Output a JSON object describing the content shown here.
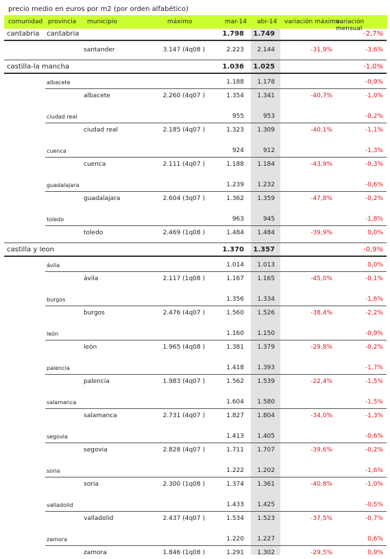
{
  "title": "precio medio en euros por m2 (por orden alfabético)",
  "colors": {
    "header_bg": "#ccff33",
    "negative": "#e8101a",
    "highlight_col": "#e2e2e2"
  },
  "header": {
    "comunidad": "comunidad",
    "provincia": "provincia",
    "municipio": "municipio",
    "maximo": "máximo",
    "mar": "mar-14",
    "abr": "abr-14",
    "var_max": "variación máximo",
    "var_men": "variación mensual"
  },
  "rows": [
    {
      "type": "com",
      "comunidad": "cantabria",
      "provincia": "cantabria",
      "municipio": "",
      "maximo": "",
      "mar": "1.798",
      "abr": "1.749",
      "var_max": "",
      "var_men": "-2,7%"
    },
    {
      "type": "mun",
      "comunidad": "",
      "provincia": "",
      "municipio": "santander",
      "maximo": "3.147 (4q08 )",
      "mar": "2.223",
      "abr": "2.144",
      "var_max": "-31,9%",
      "var_men": "-3,6%"
    },
    {
      "type": "com",
      "comunidad": "castilla-la mancha",
      "provincia": "",
      "municipio": "",
      "maximo": "",
      "mar": "1.036",
      "abr": "1.025",
      "var_max": "",
      "var_men": "-1,0%"
    },
    {
      "type": "prov",
      "comunidad": "",
      "provincia": "albacete",
      "municipio": "",
      "maximo": "",
      "mar": "1.188",
      "abr": "1.178",
      "var_max": "",
      "var_men": "-0,9%"
    },
    {
      "type": "mun",
      "comunidad": "",
      "provincia": "",
      "municipio": "albacete",
      "maximo": "2.260 (4q07 )",
      "mar": "1.354",
      "abr": "1.341",
      "var_max": "-40,7%",
      "var_men": "-1,0%"
    },
    {
      "type": "prov",
      "comunidad": "",
      "provincia": "ciudad real",
      "municipio": "",
      "maximo": "",
      "mar": "955",
      "abr": "953",
      "var_max": "",
      "var_men": "-0,2%"
    },
    {
      "type": "mun",
      "comunidad": "",
      "provincia": "",
      "municipio": "ciudad real",
      "maximo": "2.185 (4q07 )",
      "mar": "1.323",
      "abr": "1.309",
      "var_max": "-40,1%",
      "var_men": "-1,1%"
    },
    {
      "type": "prov",
      "comunidad": "",
      "provincia": "cuenca",
      "municipio": "",
      "maximo": "",
      "mar": "924",
      "abr": "912",
      "var_max": "",
      "var_men": "-1,3%"
    },
    {
      "type": "mun",
      "comunidad": "",
      "provincia": "",
      "municipio": "cuenca",
      "maximo": "2.111 (4q07 )",
      "mar": "1.188",
      "abr": "1.184",
      "var_max": "-43,9%",
      "var_men": "-0,3%"
    },
    {
      "type": "prov",
      "comunidad": "",
      "provincia": "guadalajara",
      "municipio": "",
      "maximo": "",
      "mar": "1.239",
      "abr": "1.232",
      "var_max": "",
      "var_men": "-0,6%"
    },
    {
      "type": "mun",
      "comunidad": "",
      "provincia": "",
      "municipio": "guadalajara",
      "maximo": "2.604 (3q07 )",
      "mar": "1.362",
      "abr": "1.359",
      "var_max": "-47,8%",
      "var_men": "-0,2%"
    },
    {
      "type": "prov",
      "comunidad": "",
      "provincia": "toledo",
      "municipio": "",
      "maximo": "",
      "mar": "963",
      "abr": "945",
      "var_max": "",
      "var_men": "-1,8%"
    },
    {
      "type": "mun",
      "comunidad": "",
      "provincia": "",
      "municipio": "toledo",
      "maximo": "2.469 (1q08 )",
      "mar": "1.484",
      "abr": "1.484",
      "var_max": "-39,9%",
      "var_men": "0,0%"
    },
    {
      "type": "com",
      "comunidad": "castilla y leon",
      "provincia": "",
      "municipio": "",
      "maximo": "",
      "mar": "1.370",
      "abr": "1.357",
      "var_max": "",
      "var_men": "-0,9%"
    },
    {
      "type": "prov",
      "comunidad": "",
      "provincia": "ávila",
      "municipio": "",
      "maximo": "",
      "mar": "1.014",
      "abr": "1.013",
      "var_max": "",
      "var_men": "0,0%"
    },
    {
      "type": "mun",
      "comunidad": "",
      "provincia": "",
      "municipio": "ávila",
      "maximo": "2.117 (1q08 )",
      "mar": "1.167",
      "abr": "1.165",
      "var_max": "-45,0%",
      "var_men": "-0,1%"
    },
    {
      "type": "prov",
      "comunidad": "",
      "provincia": "burgos",
      "municipio": "",
      "maximo": "",
      "mar": "1.356",
      "abr": "1.334",
      "var_max": "",
      "var_men": "-1,6%"
    },
    {
      "type": "mun",
      "comunidad": "",
      "provincia": "",
      "municipio": "burgos",
      "maximo": "2.476 (4q07 )",
      "mar": "1.560",
      "abr": "1.526",
      "var_max": "-38,4%",
      "var_men": "-2,2%"
    },
    {
      "type": "prov",
      "comunidad": "",
      "provincia": "león",
      "municipio": "",
      "maximo": "",
      "mar": "1.160",
      "abr": "1.150",
      "var_max": "",
      "var_men": "-0,9%"
    },
    {
      "type": "mun",
      "comunidad": "",
      "provincia": "",
      "municipio": "león",
      "maximo": "1.965 (4q08 )",
      "mar": "1.381",
      "abr": "1.379",
      "var_max": "-29,8%",
      "var_men": "-0,2%"
    },
    {
      "type": "prov",
      "comunidad": "",
      "provincia": "palencia",
      "municipio": "",
      "maximo": "",
      "mar": "1.418",
      "abr": "1.393",
      "var_max": "",
      "var_men": "-1,7%"
    },
    {
      "type": "mun",
      "comunidad": "",
      "provincia": "",
      "municipio": "palencia",
      "maximo": "1.983 (4q07 )",
      "mar": "1.562",
      "abr": "1.539",
      "var_max": "-22,4%",
      "var_men": "-1,5%"
    },
    {
      "type": "prov",
      "comunidad": "",
      "provincia": "salamanca",
      "municipio": "",
      "maximo": "",
      "mar": "1.604",
      "abr": "1.580",
      "var_max": "",
      "var_men": "-1,5%"
    },
    {
      "type": "mun",
      "comunidad": "",
      "provincia": "",
      "municipio": "salamanca",
      "maximo": "2.731 (4q07 )",
      "mar": "1.827",
      "abr": "1.804",
      "var_max": "-34,0%",
      "var_men": "-1,3%"
    },
    {
      "type": "prov",
      "comunidad": "",
      "provincia": "segovia",
      "municipio": "",
      "maximo": "",
      "mar": "1.413",
      "abr": "1.405",
      "var_max": "",
      "var_men": "-0,6%"
    },
    {
      "type": "mun",
      "comunidad": "",
      "provincia": "",
      "municipio": "segovia",
      "maximo": "2.828 (4q07 )",
      "mar": "1.711",
      "abr": "1.707",
      "var_max": "-39,6%",
      "var_men": "-0,2%"
    },
    {
      "type": "prov",
      "comunidad": "",
      "provincia": "soria",
      "municipio": "",
      "maximo": "",
      "mar": "1.222",
      "abr": "1.202",
      "var_max": "",
      "var_men": "-1,6%"
    },
    {
      "type": "mun",
      "comunidad": "",
      "provincia": "",
      "municipio": "soria",
      "maximo": "2.300 (1q08 )",
      "mar": "1.374",
      "abr": "1.361",
      "var_max": "-40,8%",
      "var_men": "-1,0%"
    },
    {
      "type": "prov",
      "comunidad": "",
      "provincia": "valladolid",
      "municipio": "",
      "maximo": "",
      "mar": "1.433",
      "abr": "1.425",
      "var_max": "",
      "var_men": "-0,5%"
    },
    {
      "type": "mun",
      "comunidad": "",
      "provincia": "",
      "municipio": "valladolid",
      "maximo": "2.437 (4q07 )",
      "mar": "1.534",
      "abr": "1.523",
      "var_max": "-37,5%",
      "var_men": "-0,7%"
    },
    {
      "type": "prov",
      "comunidad": "",
      "provincia": "zamora",
      "municipio": "",
      "maximo": "",
      "mar": "1.220",
      "abr": "1.227",
      "var_max": "",
      "var_men": "0,6%"
    },
    {
      "type": "mun",
      "comunidad": "",
      "provincia": "",
      "municipio": "zamora",
      "maximo": "1.846 (1q08 )",
      "mar": "1.291",
      "abr": "1.302",
      "var_max": "-29,5%",
      "var_men": "0,9%"
    }
  ]
}
